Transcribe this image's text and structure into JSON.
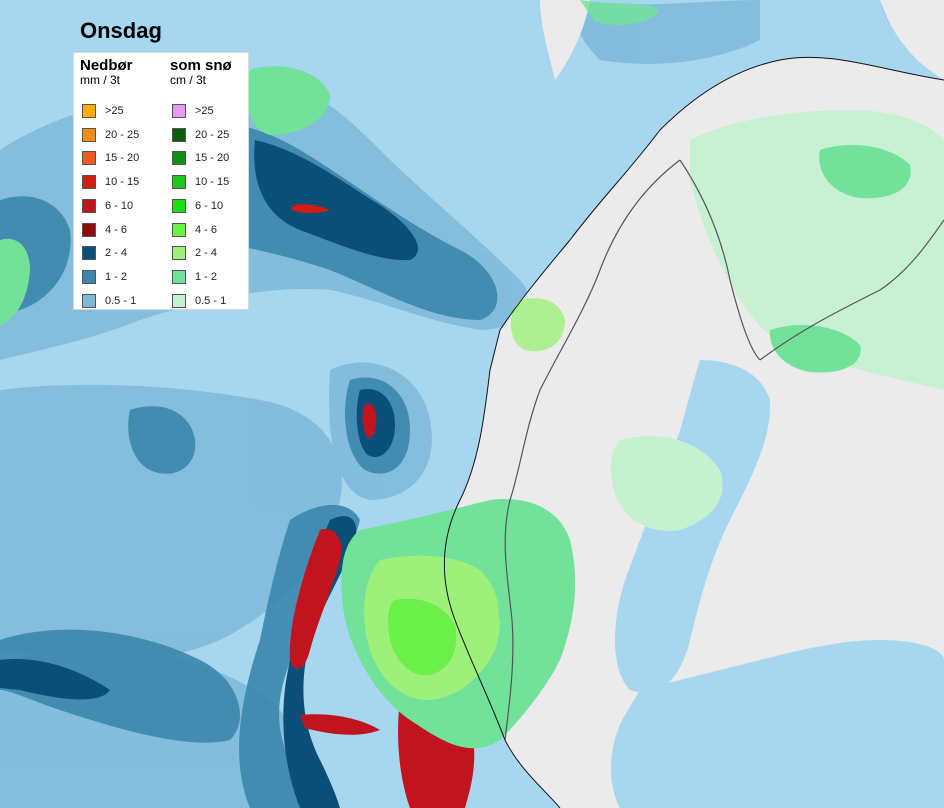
{
  "map": {
    "title": "Onsdag",
    "colors": {
      "sea": "#a7d7ef",
      "land": "#ebebeb",
      "border": "#555555",
      "coast": "#111111"
    }
  },
  "legend": {
    "rain": {
      "title": "Nedbør",
      "unit": "mm / 3t",
      "items": [
        {
          "label": ">25",
          "color": "#ffb000"
        },
        {
          "label": "20 - 25",
          "color": "#f08c1e"
        },
        {
          "label": "15 - 20",
          "color": "#ef5a1f"
        },
        {
          "label": "10 - 15",
          "color": "#d21e12"
        },
        {
          "label": "6 - 10",
          "color": "#c0141e"
        },
        {
          "label": "4 - 6",
          "color": "#8c0f0f"
        },
        {
          "label": "2 - 4",
          "color": "#0b4f78"
        },
        {
          "label": "1 - 2",
          "color": "#3b86ad"
        },
        {
          "label": "0.5 - 1",
          "color": "#7fb9d9"
        }
      ]
    },
    "snow": {
      "title": "som snø",
      "unit": "cm / 3t",
      "items": [
        {
          "label": ">25",
          "color": "#e79bef"
        },
        {
          "label": "20 - 25",
          "color": "#0a5e0a"
        },
        {
          "label": "15 - 20",
          "color": "#0f8f14"
        },
        {
          "label": "10 - 15",
          "color": "#22c41d"
        },
        {
          "label": "6 - 10",
          "color": "#17e017"
        },
        {
          "label": "4 - 6",
          "color": "#6cf04a"
        },
        {
          "label": "2 - 4",
          "color": "#9df07a"
        },
        {
          "label": "1 - 2",
          "color": "#72e29a"
        },
        {
          "label": "0.5 - 1",
          "color": "#c4f2d0"
        }
      ]
    }
  }
}
